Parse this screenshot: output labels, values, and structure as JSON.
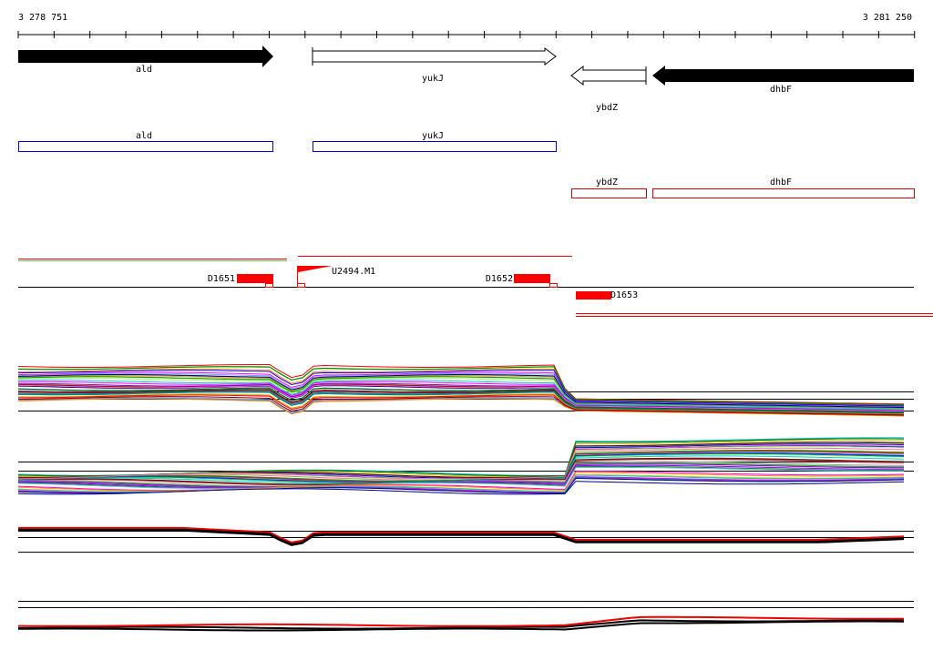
{
  "ruler": {
    "start": "3 278 751",
    "end": "3 281 250"
  },
  "genes": [
    {
      "label": "ald"
    },
    {
      "label": "yukJ"
    },
    {
      "label": "ybdZ"
    },
    {
      "label": "dhbF"
    }
  ],
  "annotations": [
    {
      "label": "ald"
    },
    {
      "label": "yukJ"
    },
    {
      "label": "ybdZ"
    },
    {
      "label": "dhbF"
    }
  ],
  "features": [
    {
      "label": "D1651"
    },
    {
      "label": "U2494.M1"
    },
    {
      "label": "D1652"
    },
    {
      "label": "D1653"
    }
  ]
}
